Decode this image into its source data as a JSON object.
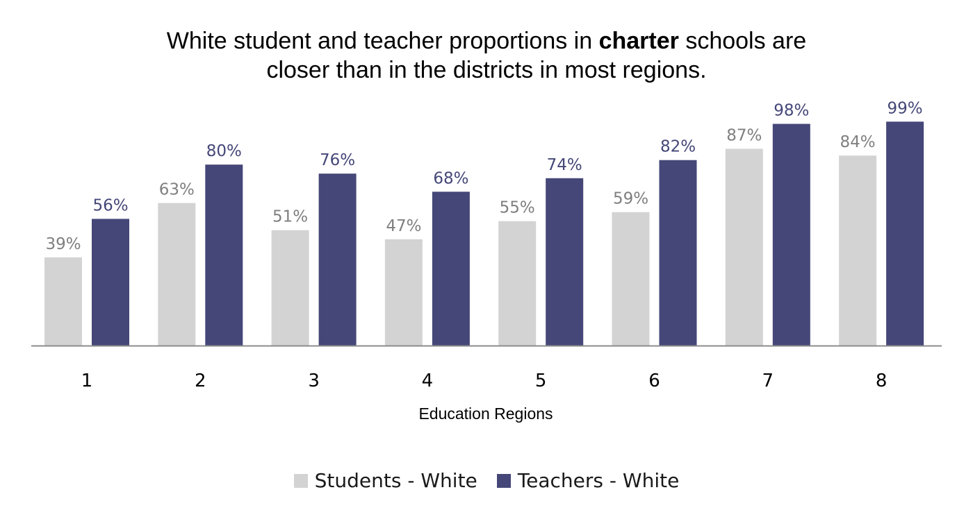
{
  "chart_data": {
    "type": "bar",
    "title": {
      "before": "White student and teacher proportions in ",
      "bold": "charter",
      "after_line1": " schools are",
      "line2": "closer than in the districts in most regions."
    },
    "xlabel": "Education Regions",
    "ylabel": "",
    "categories": [
      "1",
      "2",
      "3",
      "4",
      "5",
      "6",
      "7",
      "8"
    ],
    "ylim": [
      0,
      100
    ],
    "grid": false,
    "legend_position": "bottom",
    "series": [
      {
        "name": "Students - White",
        "color": "#d3d3d3",
        "label_color": "#7f7f7f",
        "values": [
          39,
          63,
          51,
          47,
          55,
          59,
          87,
          84
        ],
        "labels": [
          "39%",
          "63%",
          "51%",
          "47%",
          "55%",
          "59%",
          "87%",
          "84%"
        ]
      },
      {
        "name": "Teachers - White",
        "color": "#454778",
        "label_color": "#454778",
        "values": [
          56,
          80,
          76,
          68,
          74,
          82,
          98,
          99
        ],
        "labels": [
          "56%",
          "80%",
          "76%",
          "68%",
          "74%",
          "82%",
          "98%",
          "99%"
        ]
      }
    ]
  }
}
